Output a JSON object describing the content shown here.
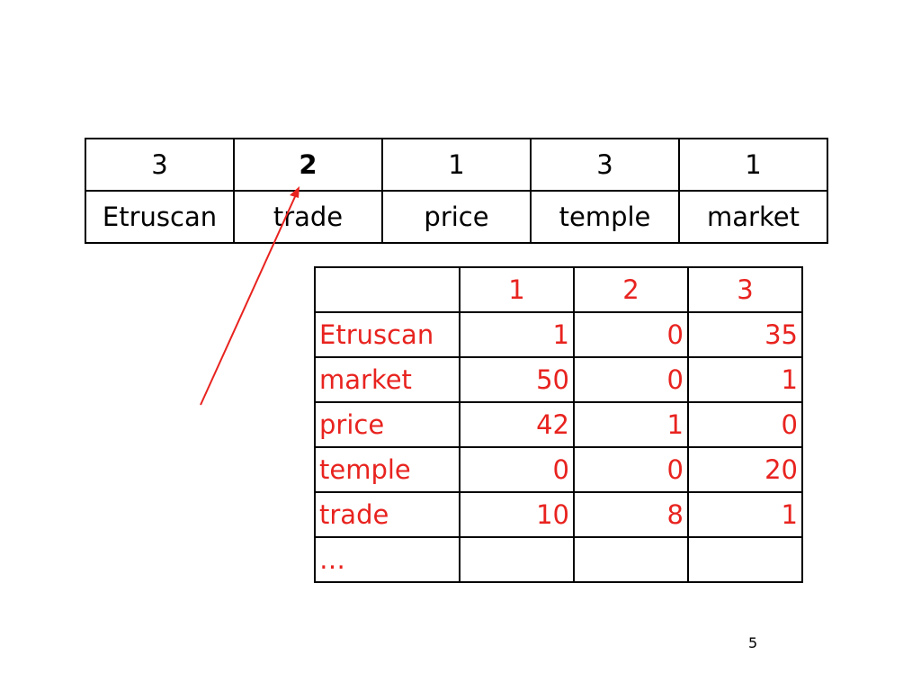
{
  "top_table": {
    "counts": [
      "3",
      "2",
      "1",
      "3",
      "1"
    ],
    "words": [
      "Etruscan",
      "trade",
      "price",
      "temple",
      "market"
    ]
  },
  "bottom_table": {
    "headers": [
      "",
      "1",
      "2",
      "3"
    ],
    "rows": [
      {
        "term": "Etruscan",
        "values": [
          "1",
          "0",
          "35"
        ]
      },
      {
        "term": "market",
        "values": [
          "50",
          "0",
          "1"
        ]
      },
      {
        "term": "price",
        "values": [
          "42",
          "1",
          "0"
        ]
      },
      {
        "term": "temple",
        "values": [
          "0",
          "0",
          "20"
        ]
      },
      {
        "term": "trade",
        "values": [
          "10",
          "8",
          "1"
        ]
      },
      {
        "term": "…",
        "values": [
          "",
          "",
          ""
        ]
      }
    ]
  },
  "page_number": "5",
  "colors": {
    "accent": "#e8231f",
    "text": "#000000"
  }
}
